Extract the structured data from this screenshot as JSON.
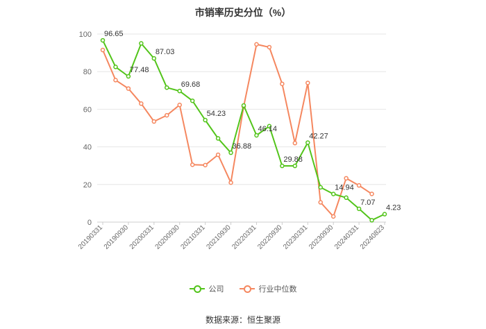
{
  "chart_data": {
    "type": "line",
    "title": "市销率历史分位（%）",
    "ylim": [
      0,
      100
    ],
    "yticks": [
      0,
      20,
      40,
      60,
      80,
      100
    ],
    "grid": true,
    "legend_position": "bottom",
    "x_tick_labels": [
      "20190331",
      "20190930",
      "20200331",
      "20200930",
      "20210331",
      "20210930",
      "20220331",
      "20220930",
      "20230331",
      "20230930",
      "20240331",
      "20240823"
    ],
    "x_tick_indices": [
      0,
      2,
      4,
      6,
      8,
      10,
      12,
      14,
      16,
      18,
      20,
      22
    ],
    "series": [
      {
        "name": "公司",
        "color": "#52c41a",
        "x": [
          0,
          1,
          2,
          3,
          4,
          5,
          6,
          7,
          8,
          9,
          10,
          11,
          12,
          13,
          14,
          15,
          16,
          17,
          18,
          19,
          20,
          21,
          22
        ],
        "values": [
          96.65,
          82.5,
          77.48,
          95,
          87.03,
          71.5,
          69.68,
          64.5,
          54.23,
          44.5,
          36.88,
          62,
          46.14,
          51,
          29.88,
          29.88,
          42.27,
          18.5,
          14.94,
          13,
          7.07,
          1,
          4.23
        ]
      },
      {
        "name": "行业中位数",
        "color": "#f5875f",
        "x": [
          0,
          1,
          2,
          3,
          4,
          5,
          6,
          7,
          8,
          9,
          10,
          11,
          12,
          13,
          14,
          15,
          16,
          17,
          18,
          19,
          20,
          21
        ],
        "values": [
          91.5,
          75.5,
          71,
          63,
          53.5,
          56.8,
          62.3,
          30.5,
          30.3,
          35.8,
          21,
          61.5,
          94.5,
          93,
          73.5,
          42,
          74,
          10.5,
          3,
          23.3,
          19.5,
          15
        ]
      }
    ],
    "data_labels": [
      {
        "series": 0,
        "index": 0,
        "text": "96.65"
      },
      {
        "series": 0,
        "index": 2,
        "text": "77.48"
      },
      {
        "series": 0,
        "index": 4,
        "text": "87.03"
      },
      {
        "series": 0,
        "index": 6,
        "text": "69.68"
      },
      {
        "series": 0,
        "index": 8,
        "text": "54.23"
      },
      {
        "series": 0,
        "index": 10,
        "text": "36.88"
      },
      {
        "series": 0,
        "index": 12,
        "text": "46.14"
      },
      {
        "series": 0,
        "index": 14,
        "text": "29.88"
      },
      {
        "series": 0,
        "index": 16,
        "text": "42.27"
      },
      {
        "series": 0,
        "index": 18,
        "text": "14.94"
      },
      {
        "series": 0,
        "index": 20,
        "text": "7.07"
      },
      {
        "series": 0,
        "index": 22,
        "text": "4.23"
      }
    ]
  },
  "legend": {
    "company": "公司",
    "industry": "行业中位数"
  },
  "source_text": "数据来源：恒生聚源"
}
